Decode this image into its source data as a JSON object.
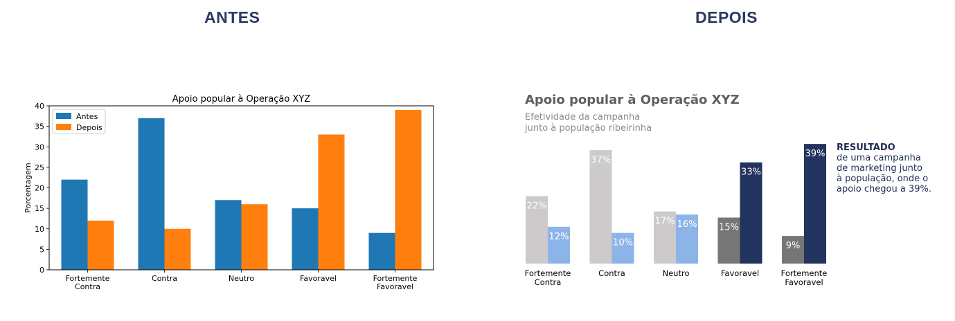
{
  "headings": {
    "left": "ANTES",
    "right": "DEPOIS"
  },
  "colors": {
    "heading": "#2b3a63",
    "antes_blue": "#1f77b4",
    "depois_orange": "#ff7f0e",
    "before_gray_light": "#cccacb",
    "before_gray_dark": "#767676",
    "after_blue_light": "#8db4e8",
    "after_navy": "#22335d",
    "title_gray": "#5f5f5f",
    "subtitle_gray": "#8a8a8a"
  },
  "chart_data": [
    {
      "type": "bar",
      "title": "Apoio popular à Operação XYZ",
      "xlabel": "",
      "ylabel": "Porcentagem",
      "categories": [
        "Fortemente\nContra",
        "Contra",
        "Neutro",
        "Favoravel",
        "Fortemente\nFavoravel"
      ],
      "series": [
        {
          "name": "Antes",
          "values": [
            22,
            37,
            17,
            15,
            9
          ]
        },
        {
          "name": "Depois",
          "values": [
            12,
            10,
            16,
            33,
            39
          ]
        }
      ],
      "ylim": [
        0,
        40
      ],
      "yticks": [
        "0",
        "5",
        "10",
        "15",
        "20",
        "25",
        "30",
        "35",
        "40"
      ],
      "legend": "top-left",
      "grid": false
    },
    {
      "type": "bar",
      "title": "Apoio popular à Operação XYZ",
      "subtitle": [
        "Efetividade da campanha",
        "junto à população ribeirinha"
      ],
      "categories": [
        "Fortemente\nContra",
        "Contra",
        "Neutro",
        "Favoravel",
        "Fortemente\nFavoravel"
      ],
      "series": [
        {
          "values": [
            22,
            37,
            17,
            15,
            9
          ],
          "labels": [
            "22%",
            "37%",
            "17%",
            "15%",
            "9%"
          ]
        },
        {
          "values": [
            12,
            10,
            16,
            33,
            39
          ],
          "labels": [
            "12%",
            "10%",
            "16%",
            "33%",
            "39%"
          ]
        }
      ],
      "annotation": {
        "heading": "RESULTADO",
        "lines": [
          "de uma campanha",
          "de marketing junto",
          "à população, onde o",
          "apoio chegou a 39%."
        ]
      },
      "grid": false
    }
  ]
}
